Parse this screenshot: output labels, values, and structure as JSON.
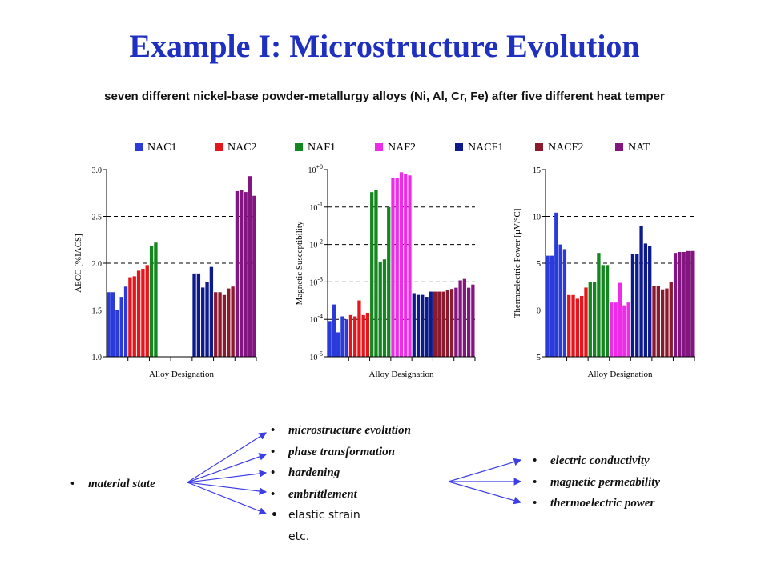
{
  "title": "Example I: Microstructure Evolution",
  "subtitle": "seven different nickel-base powder-metallurgy alloys (Ni, Al, Cr, Fe) after five different heat temper",
  "legend": [
    {
      "label": "NAC1",
      "color": "#2a3bd9"
    },
    {
      "label": "NAC2",
      "color": "#e4161c"
    },
    {
      "label": "NAF1",
      "color": "#13861f"
    },
    {
      "label": "NAF2",
      "color": "#ee2ce8"
    },
    {
      "label": "NACF1",
      "color": "#0c1a8c"
    },
    {
      "label": "NACF2",
      "color": "#8b1a2e"
    },
    {
      "label": "NAT",
      "color": "#82157f"
    }
  ],
  "chart_data": [
    {
      "type": "bar",
      "ylabel": "AECC [%IACS]",
      "xlabel": "Alloy Designation",
      "ylim": [
        1.0,
        3.0
      ],
      "yticks": [
        "1.0",
        "1.5",
        "2.0",
        "2.5",
        "3.0"
      ],
      "grid": "dashed horizontal",
      "series": [
        {
          "name": "NAC1",
          "values": [
            1.69,
            1.69,
            1.5,
            1.64,
            1.75
          ]
        },
        {
          "name": "NAC2",
          "values": [
            1.85,
            1.86,
            1.92,
            1.94,
            1.98
          ]
        },
        {
          "name": "NAF1",
          "values": [
            2.18,
            2.22
          ]
        },
        {
          "name": "NAF2",
          "values": []
        },
        {
          "name": "NACF1",
          "values": [
            1.89,
            1.89,
            1.74,
            1.8,
            1.96
          ]
        },
        {
          "name": "NACF2",
          "values": [
            1.69,
            1.69,
            1.66,
            1.73,
            1.75
          ]
        },
        {
          "name": "NAT",
          "values": [
            2.77,
            2.78,
            2.76,
            2.93,
            2.72
          ]
        }
      ]
    },
    {
      "type": "bar",
      "ylabel": "Magnetic Susceptibility",
      "xlabel": "Alloy Designation",
      "yscale": "log",
      "ylim": [
        1e-05,
        1
      ],
      "yticks": [
        "10-5",
        "10-4",
        "10-3",
        "10-2",
        "10-1",
        "10+0"
      ],
      "grid": "dashed horizontal",
      "series": [
        {
          "name": "NAC1",
          "values": [
            9e-05,
            0.00025,
            4.5e-05,
            0.00012,
            0.0001
          ]
        },
        {
          "name": "NAC2",
          "values": [
            0.00013,
            0.00012,
            0.00032,
            0.00013,
            0.00015
          ]
        },
        {
          "name": "NAF1",
          "values": [
            0.25,
            0.28,
            0.0035,
            0.004,
            0.1
          ]
        },
        {
          "name": "NAF2",
          "values": [
            0.6,
            0.6,
            0.85,
            0.75,
            0.7
          ]
        },
        {
          "name": "NACF1",
          "values": [
            0.0005,
            0.00045,
            0.00045,
            0.0004,
            0.00055
          ]
        },
        {
          "name": "NACF2",
          "values": [
            0.00055,
            0.00055,
            0.00055,
            0.0006,
            0.00065
          ]
        },
        {
          "name": "NAT",
          "values": [
            0.0007,
            0.0011,
            0.0012,
            0.0007,
            0.00085
          ]
        }
      ]
    },
    {
      "type": "bar",
      "ylabel": "Thermoelectric Power [μV/°C]",
      "xlabel": "Alloy Designation",
      "ylim": [
        -5,
        15
      ],
      "yticks": [
        "-5",
        "0",
        "5",
        "10",
        "15"
      ],
      "grid": "dashed horizontal",
      "series": [
        {
          "name": "NAC1",
          "values": [
            5.8,
            5.8,
            10.4,
            7.0,
            6.5
          ]
        },
        {
          "name": "NAC2",
          "values": [
            1.6,
            1.6,
            1.2,
            1.5,
            2.4
          ]
        },
        {
          "name": "NAF1",
          "values": [
            3.0,
            3.0,
            6.1,
            4.8,
            4.8
          ]
        },
        {
          "name": "NAF2",
          "values": [
            0.8,
            0.8,
            2.9,
            0.5,
            0.8
          ]
        },
        {
          "name": "NACF1",
          "values": [
            6.0,
            6.0,
            9.0,
            7.1,
            6.8
          ]
        },
        {
          "name": "NACF2",
          "values": [
            2.6,
            2.6,
            2.2,
            2.3,
            3.0
          ]
        },
        {
          "name": "NAT",
          "values": [
            6.1,
            6.2,
            6.2,
            6.3,
            6.3
          ]
        }
      ]
    }
  ],
  "lists": {
    "left": [
      "material state"
    ],
    "middle": [
      "microstructure evolution",
      "phase transformation",
      "hardening",
      "embrittlement",
      "elastic strain",
      "etc."
    ],
    "right": [
      "electric conductivity",
      "magnetic permeability",
      "thermoelectric power"
    ]
  },
  "arrow_color": "#3d3de6"
}
